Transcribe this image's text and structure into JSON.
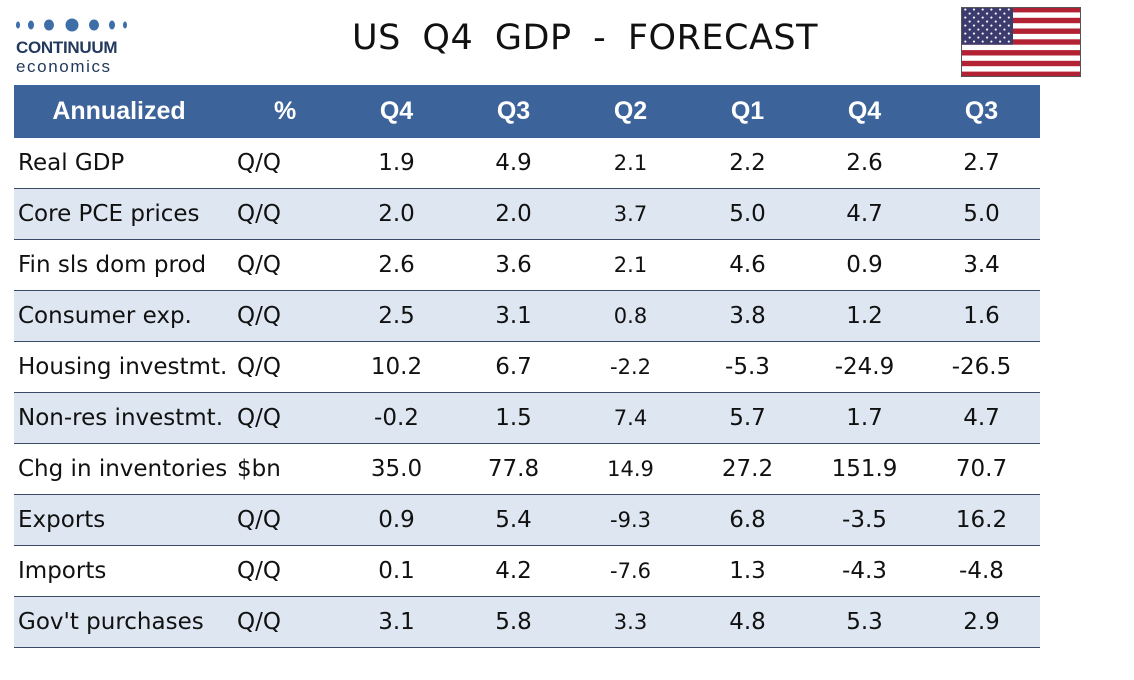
{
  "logo": {
    "name": "CONTINUUM",
    "subtitle": "economics",
    "dot_color": "#3d6ea8"
  },
  "title": "US   Q4  GDP  - FORECAST",
  "flag_icon": "us-flag-icon",
  "colors": {
    "header_bg": "#3c639a",
    "header_text": "#ffffff",
    "stripe": "#dde6f1",
    "row_rule": "#3a4a66"
  },
  "table": {
    "headers": [
      "Annualized",
      "%",
      "Q4",
      "Q3",
      "Q2",
      "Q1",
      "Q4",
      "Q3"
    ],
    "rows": [
      {
        "label": "Real GDP",
        "unit": "Q/Q",
        "values": [
          "1.9",
          "4.9",
          "2.1",
          "2.2",
          "2.6",
          "2.7"
        ]
      },
      {
        "label": "Core PCE prices",
        "unit": "Q/Q",
        "values": [
          "2.0",
          "2.0",
          "3.7",
          "5.0",
          "4.7",
          "5.0"
        ]
      },
      {
        "label": "Fin sls dom prod",
        "unit": "Q/Q",
        "values": [
          "2.6",
          "3.6",
          "2.1",
          "4.6",
          "0.9",
          "3.4"
        ]
      },
      {
        "label": "Consumer exp.",
        "unit": "Q/Q",
        "values": [
          "2.5",
          "3.1",
          "0.8",
          "3.8",
          "1.2",
          "1.6"
        ]
      },
      {
        "label": "Housing investmt.",
        "unit": "Q/Q",
        "values": [
          "10.2",
          "6.7",
          "-2.2",
          "-5.3",
          "-24.9",
          "-26.5"
        ]
      },
      {
        "label": "Non-res investmt.",
        "unit": "Q/Q",
        "values": [
          "-0.2",
          "1.5",
          "7.4",
          "5.7",
          "1.7",
          "4.7"
        ]
      },
      {
        "label": "Chg in inventories",
        "unit": "$bn",
        "values": [
          "35.0",
          "77.8",
          "14.9",
          "27.2",
          "151.9",
          "70.7"
        ]
      },
      {
        "label": "Exports",
        "unit": "Q/Q",
        "values": [
          "0.9",
          "5.4",
          "-9.3",
          "6.8",
          "-3.5",
          "16.2"
        ]
      },
      {
        "label": "Imports",
        "unit": "Q/Q",
        "values": [
          "0.1",
          "4.2",
          "-7.6",
          "1.3",
          "-4.3",
          "-4.8"
        ]
      },
      {
        "label": "Gov't purchases",
        "unit": "Q/Q",
        "values": [
          "3.1",
          "5.8",
          "3.3",
          "4.8",
          "5.3",
          "2.9"
        ]
      }
    ]
  }
}
